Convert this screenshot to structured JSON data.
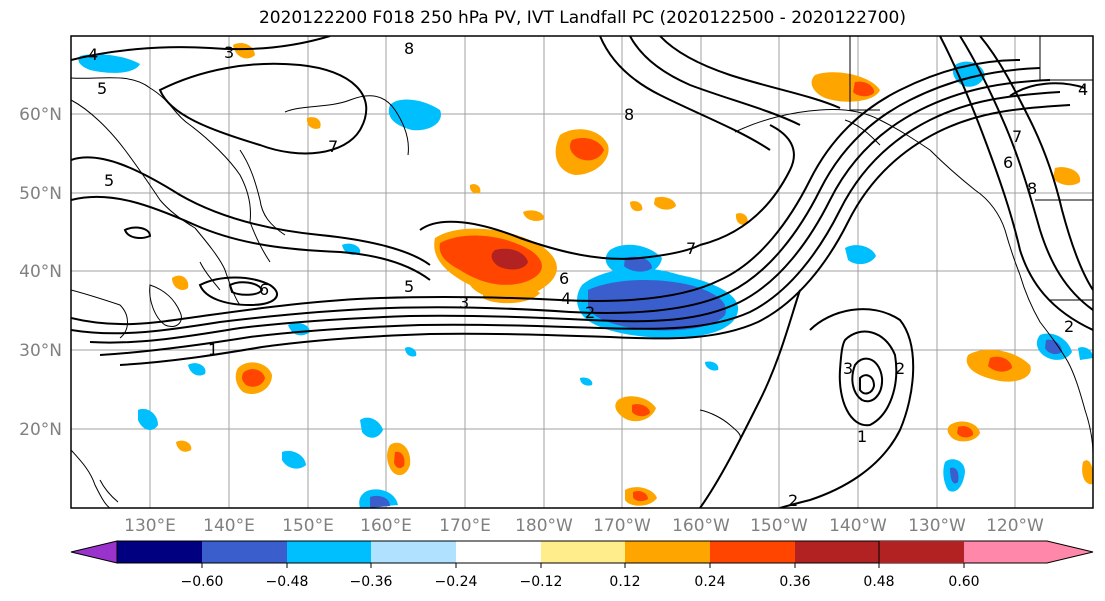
{
  "title": "2020122200 F018 250 hPa PV, IVT Landfall PC (2020122500 - 2020122700)",
  "map": {
    "lon_labels": [
      "130°E",
      "140°E",
      "150°E",
      "160°E",
      "170°E",
      "180°W",
      "170°W",
      "160°W",
      "150°W",
      "140°W",
      "130°W",
      "120°W"
    ],
    "lat_labels": [
      "60°N",
      "50°N",
      "40°N",
      "30°N",
      "20°N"
    ],
    "contour_labels": [
      "4",
      "3",
      "5",
      "7",
      "5",
      "7",
      "6",
      "5",
      "3",
      "4",
      "6",
      "2",
      "1",
      "8",
      "8",
      "7",
      "6",
      "8",
      "2",
      "1",
      "3",
      "2",
      "2",
      "4"
    ]
  },
  "colorbar": {
    "colors": [
      "#9933cc",
      "#000080",
      "#3a5fcd",
      "#00bfff",
      "#b0e2ff",
      "#ffffff",
      "#ffec8b",
      "#ffa500",
      "#ff4500",
      "#b22222",
      "#ff88aa"
    ],
    "tick_labels": [
      "−0.60",
      "−0.48",
      "−0.36",
      "−0.24",
      "−0.12",
      "0.12",
      "0.24",
      "0.36",
      "0.48",
      "0.60"
    ]
  }
}
